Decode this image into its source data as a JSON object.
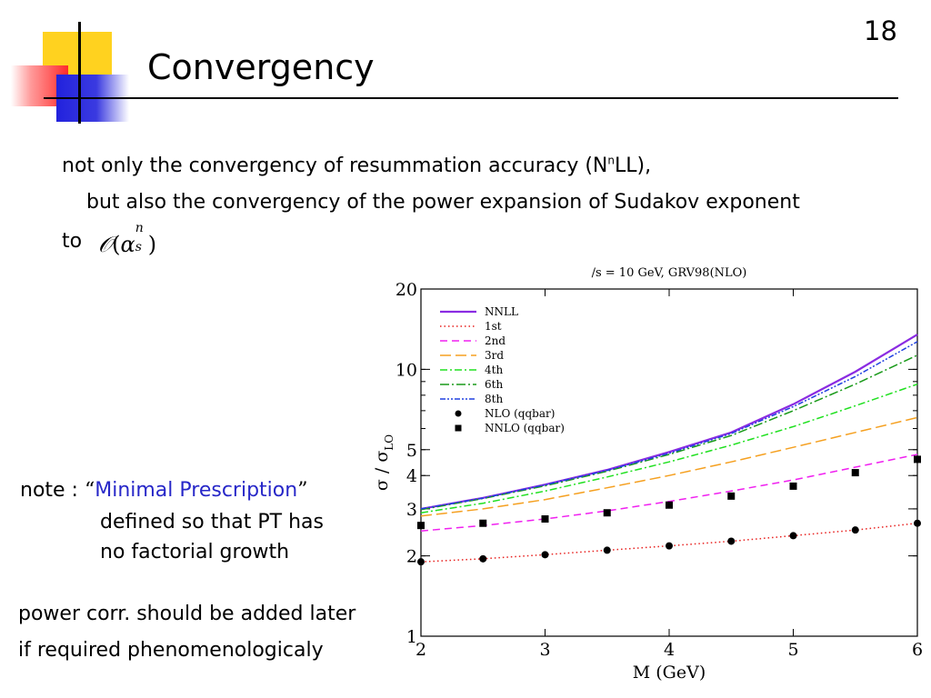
{
  "slide": {
    "title": "Convergency",
    "page_number": "18"
  },
  "body": {
    "line1_a": "not only the convergency of resummation accuracy (N",
    "line1_sup": "n",
    "line1_b": "LL),",
    "line2": "but also the convergency of the power expansion of Sudakov exponent",
    "line3_prefix": "to",
    "formula": {
      "O": "𝒪",
      "open": "(",
      "alpha": "α",
      "sup": "n",
      "sub": "s",
      "close": ")"
    }
  },
  "note": {
    "prefix": "note : ",
    "open_quote": "“",
    "term": "Minimal Prescription",
    "close_quote": "”",
    "cont1": "defined so that PT has",
    "cont2": "no factorial growth",
    "highlight_color": "#2727c8"
  },
  "power_corr": {
    "line1": "power corr. should be added later",
    "line2": "if required phenomenologicaly"
  },
  "chart_data": {
    "type": "line",
    "title": "/s = 10 GeV, GRV98(NLO)",
    "xlabel": "M (GeV)",
    "ylabel_main": "σ / σ",
    "ylabel_sub": "LO",
    "xlim": [
      2,
      6
    ],
    "ylim": [
      1,
      20
    ],
    "yscale": "log",
    "x_ticks": [
      "2",
      "3",
      "4",
      "5",
      "6"
    ],
    "y_ticks": [
      {
        "value": 1,
        "label": "1"
      },
      {
        "value": 2,
        "label": "2"
      },
      {
        "value": 3,
        "label": "3"
      },
      {
        "value": 4,
        "label": "4"
      },
      {
        "value": 5,
        "label": "5"
      },
      {
        "value": 10,
        "label": "10"
      },
      {
        "value": 20,
        "label": "20"
      }
    ],
    "legend_position": "top-left",
    "series": [
      {
        "name": "NNLL",
        "kind": "line",
        "color": "#8a2be2",
        "dash": "",
        "width": 2.2,
        "x": [
          2,
          2.5,
          3,
          3.5,
          4,
          4.5,
          5,
          5.5,
          6
        ],
        "y": [
          3.0,
          3.3,
          3.7,
          4.2,
          4.9,
          5.8,
          7.4,
          9.8,
          13.5
        ]
      },
      {
        "name": "1st",
        "kind": "line",
        "color": "#e8201e",
        "dash": "1.5 3",
        "width": 1.5,
        "x": [
          2,
          2.5,
          3,
          3.5,
          4,
          4.5,
          5,
          5.5,
          6
        ],
        "y": [
          1.9,
          1.95,
          2.02,
          2.1,
          2.18,
          2.27,
          2.38,
          2.5,
          2.65
        ]
      },
      {
        "name": "2nd",
        "kind": "line",
        "color": "#f020f0",
        "dash": "8 5",
        "width": 1.5,
        "x": [
          2,
          2.5,
          3,
          3.5,
          4,
          4.5,
          5,
          5.5,
          6
        ],
        "y": [
          2.48,
          2.6,
          2.75,
          2.95,
          3.2,
          3.5,
          3.85,
          4.3,
          4.8
        ]
      },
      {
        "name": "3rd",
        "kind": "line",
        "color": "#f5a020",
        "dash": "12 5",
        "width": 1.5,
        "x": [
          2,
          2.5,
          3,
          3.5,
          4,
          4.5,
          5,
          5.5,
          6
        ],
        "y": [
          2.82,
          3.0,
          3.25,
          3.6,
          4.0,
          4.5,
          5.1,
          5.8,
          6.6
        ]
      },
      {
        "name": "4th",
        "kind": "line",
        "color": "#20e020",
        "dash": "8 3 2 3",
        "width": 1.5,
        "x": [
          2,
          2.5,
          3,
          3.5,
          4,
          4.5,
          5,
          5.5,
          6
        ],
        "y": [
          2.9,
          3.15,
          3.5,
          3.95,
          4.5,
          5.2,
          6.1,
          7.3,
          8.8
        ]
      },
      {
        "name": "6th",
        "kind": "line",
        "color": "#1a9a1a",
        "dash": "10 3 2 3",
        "width": 1.5,
        "x": [
          2,
          2.5,
          3,
          3.5,
          4,
          4.5,
          5,
          5.5,
          6
        ],
        "y": [
          2.98,
          3.28,
          3.66,
          4.15,
          4.8,
          5.65,
          7.0,
          8.8,
          11.3
        ]
      },
      {
        "name": "8th",
        "kind": "line",
        "color": "#2040e0",
        "dash": "6 2 2 2 2 2",
        "width": 1.5,
        "x": [
          2,
          2.5,
          3,
          3.5,
          4,
          4.5,
          5,
          5.5,
          6
        ],
        "y": [
          3.0,
          3.29,
          3.69,
          4.18,
          4.85,
          5.75,
          7.25,
          9.4,
          12.7
        ]
      },
      {
        "name": "NLO (qqbar)",
        "kind": "points",
        "marker": "circle",
        "color": "#000000",
        "x": [
          2,
          2.5,
          3,
          3.5,
          4,
          4.5,
          5,
          5.5,
          6
        ],
        "y": [
          1.9,
          1.95,
          2.02,
          2.1,
          2.18,
          2.27,
          2.38,
          2.5,
          2.65
        ]
      },
      {
        "name": "NNLO (qqbar)",
        "kind": "points",
        "marker": "square",
        "color": "#000000",
        "x": [
          2,
          2.5,
          3,
          3.5,
          4,
          4.5,
          5,
          5.5,
          6
        ],
        "y": [
          2.6,
          2.65,
          2.75,
          2.9,
          3.1,
          3.35,
          3.65,
          4.1,
          4.6
        ]
      }
    ]
  }
}
